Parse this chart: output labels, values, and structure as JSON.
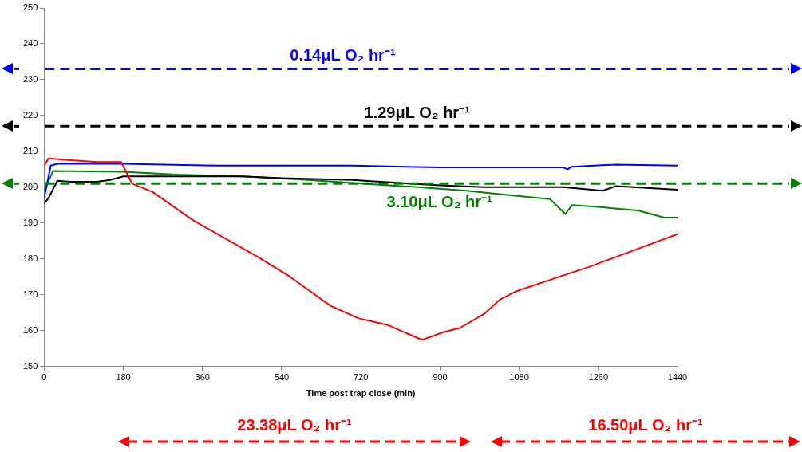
{
  "chart_data": {
    "type": "line",
    "xlabel": "Time post trap close (min)",
    "xlim": [
      0,
      1440
    ],
    "xticks": [
      0,
      180,
      360,
      540,
      720,
      900,
      1080,
      1260,
      1440
    ],
    "ylim": [
      150,
      250
    ],
    "yticks": [
      150,
      160,
      170,
      180,
      190,
      200,
      210,
      220,
      230,
      240,
      250
    ],
    "grid": false,
    "legend": false,
    "marker": "none",
    "line_style": "solid",
    "series": [
      {
        "color": "#ff0000",
        "x": [
          0,
          10,
          60,
          120,
          175,
          200,
          246,
          338,
          486,
          559,
          651,
          715,
          780,
          853,
          862,
          909,
          945,
          1000,
          1037,
          1074,
          1166,
          1240,
          1350,
          1440
        ],
        "values": [
          206,
          208,
          207.5,
          207,
          207,
          201,
          198.7,
          190.8,
          180.5,
          175,
          166.9,
          163.4,
          161.6,
          157.7,
          157.5,
          159.6,
          160.7,
          164.6,
          168.7,
          171,
          174.8,
          177.8,
          182.8,
          186.9
        ]
      },
      {
        "color": "#0000ff",
        "x": [
          0,
          15,
          30,
          180,
          400,
          700,
          900,
          1180,
          1190,
          1200,
          1300,
          1440
        ],
        "values": [
          197,
          206,
          206.5,
          206.5,
          206,
          206,
          205.5,
          205.5,
          205,
          205.7,
          206.3,
          206
        ]
      },
      {
        "color": "#000000",
        "x": [
          0,
          10,
          30,
          60,
          120,
          150,
          180,
          300,
          450,
          540,
          700,
          900,
          1000,
          1180,
          1270,
          1300,
          1440
        ],
        "values": [
          195.5,
          197,
          201.8,
          201.5,
          201.5,
          202,
          203,
          203,
          203,
          202.5,
          202,
          200.5,
          200,
          200,
          199,
          200.3,
          199.3
        ]
      },
      {
        "color": "#008000",
        "x": [
          0,
          20,
          180,
          300,
          450,
          600,
          720,
          850,
          960,
          1080,
          1150,
          1185,
          1200,
          1260,
          1350,
          1410,
          1440
        ],
        "values": [
          199,
          204.5,
          204.3,
          203.5,
          203,
          202,
          201,
          200,
          199,
          197.5,
          196.7,
          192.5,
          195,
          194.5,
          193.5,
          191.5,
          191.5
        ]
      }
    ],
    "ref_lines": [
      {
        "axis": "y",
        "value": 233,
        "label": "0.14μL O₂ hr⁻¹",
        "color": "#0000ff",
        "line_style": "dashed"
      },
      {
        "axis": "y",
        "value": 217,
        "label": "1.29μL O₂ hr⁻¹",
        "color": "#000000",
        "line_style": "dashed"
      },
      {
        "axis": "y",
        "value": 201,
        "label": "3.10μL O₂ hr⁻¹",
        "color": "#008000",
        "line_style": "dashed"
      }
    ],
    "annotations": [
      "23.38μL O₂ hr⁻¹",
      "16.50μL O₂ hr⁻¹"
    ]
  }
}
